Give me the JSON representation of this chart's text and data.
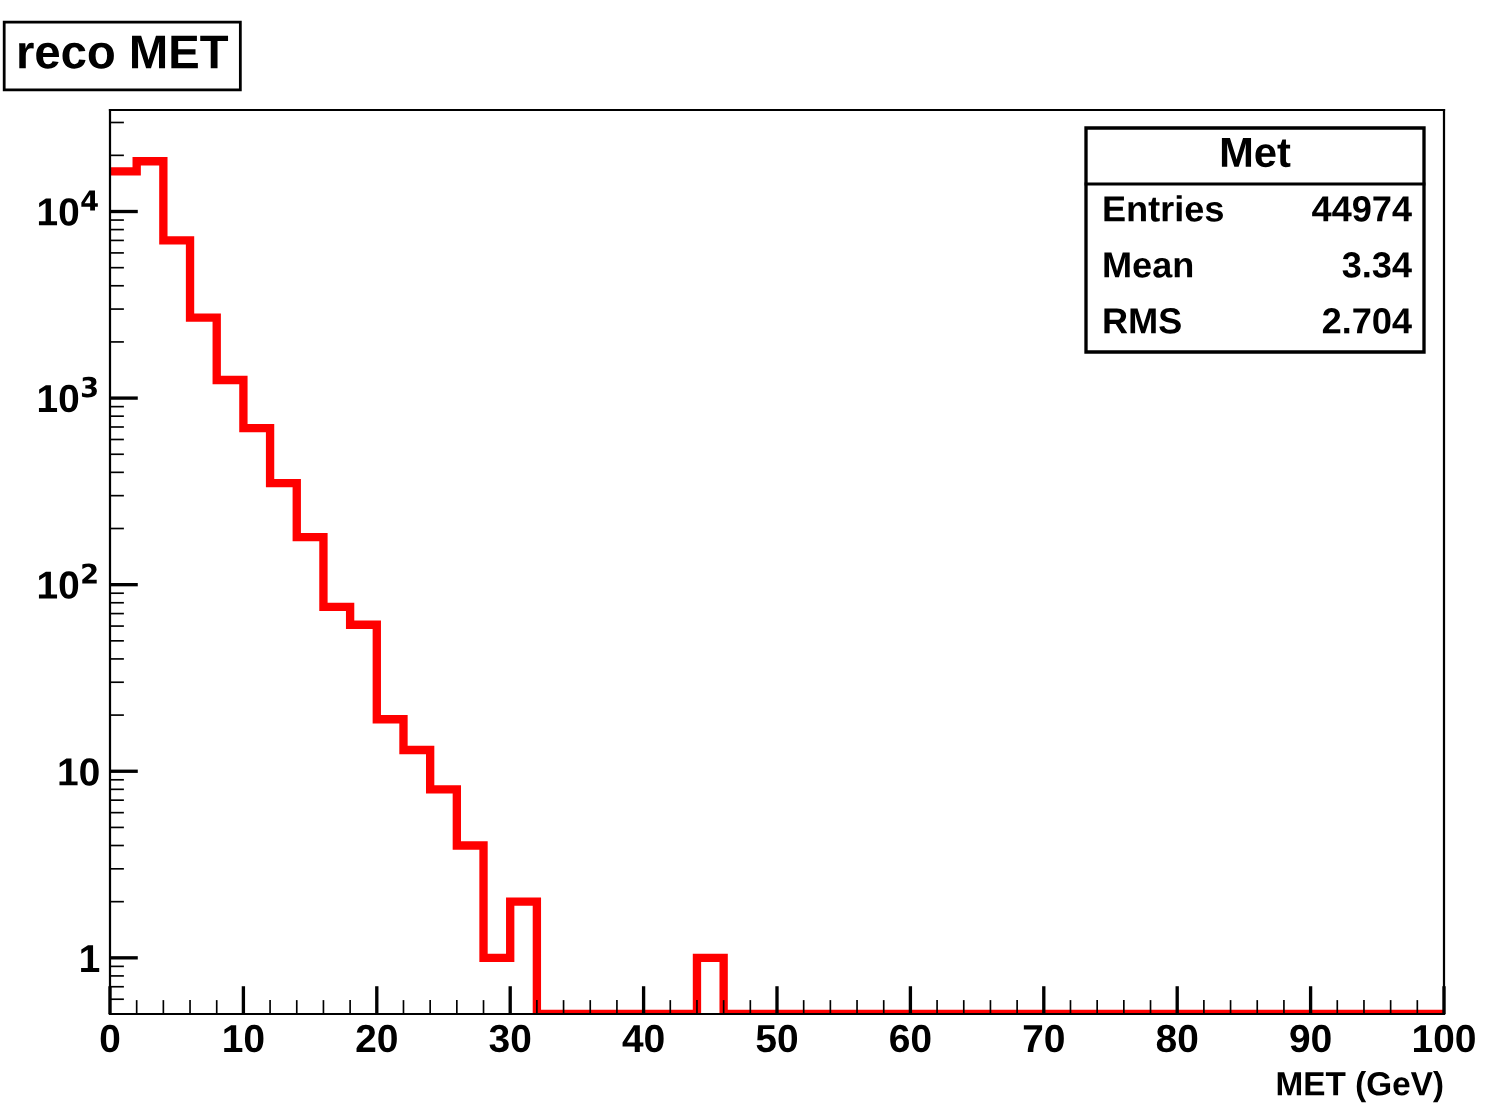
{
  "chart_data": {
    "type": "histogram",
    "title": "reco MET",
    "xlabel": "MET (GeV)",
    "bins": [
      0,
      2,
      4,
      6,
      8,
      10,
      12,
      14,
      16,
      18,
      20,
      22,
      24,
      26,
      28,
      30,
      32,
      34,
      36,
      38,
      40,
      42,
      44,
      46,
      48,
      50,
      52,
      54,
      56,
      58,
      60,
      62,
      64,
      66,
      68,
      70,
      72,
      74,
      76,
      78,
      80,
      82,
      84,
      86,
      88,
      90,
      92,
      94,
      96,
      98,
      100
    ],
    "values": [
      16400,
      18600,
      7000,
      2700,
      1250,
      690,
      350,
      180,
      76,
      61,
      19,
      13,
      8,
      4,
      1,
      2,
      null,
      null,
      null,
      null,
      null,
      null,
      1,
      null,
      null,
      null,
      null,
      null,
      null,
      null,
      null,
      null,
      null,
      null,
      null,
      null,
      null,
      null,
      null,
      null,
      null,
      null,
      null,
      null,
      null,
      null,
      null,
      null,
      null,
      null
    ],
    "color": "#ff0000",
    "log": "y",
    "xlim": [
      0,
      100
    ],
    "ylim": [
      0.5,
      35000
    ],
    "xticks": [
      0,
      10,
      20,
      30,
      40,
      50,
      60,
      70,
      80,
      90,
      100
    ],
    "yticks": [
      1,
      10,
      {
        "value": 100,
        "label": "10$^{2}$"
      },
      {
        "value": 1000,
        "label": "10$^{3}$"
      },
      {
        "value": 10000,
        "label": "10$^{4}$"
      }
    ],
    "grid": false,
    "legend": false,
    "annotations": [
      "Met",
      "Entries",
      "44974",
      "Mean",
      "3.34",
      "RMS",
      "2.704"
    ]
  }
}
